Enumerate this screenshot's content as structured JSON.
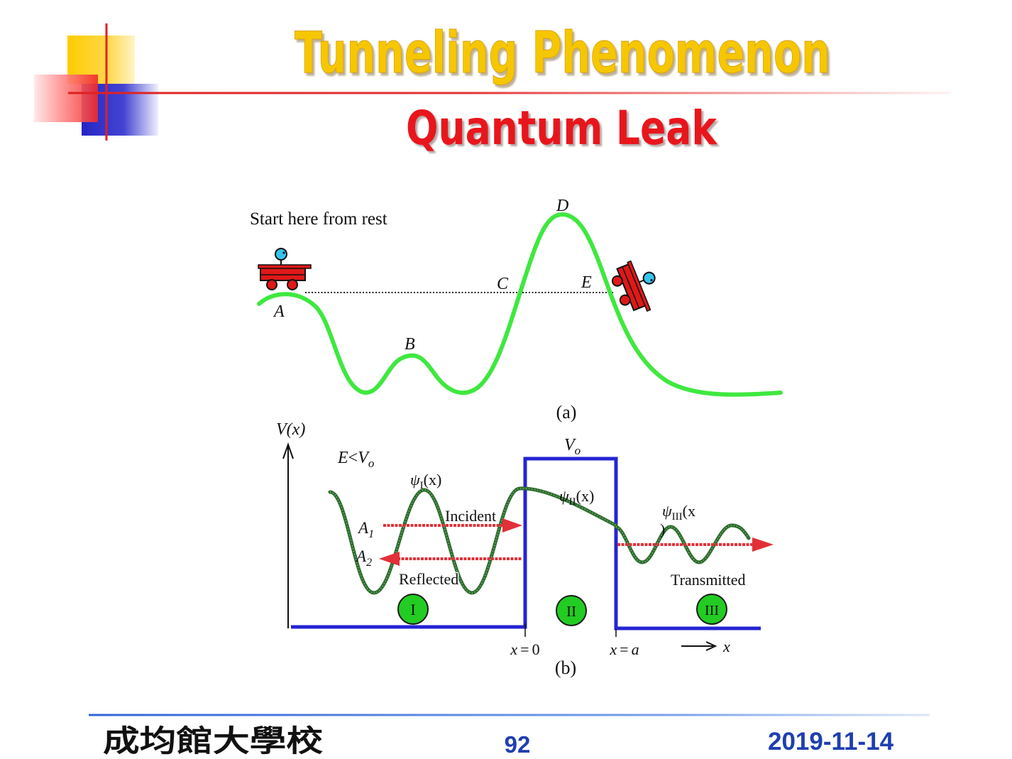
{
  "slide": {
    "title": "Tunneling Phenomenon",
    "subtitle": "Quantum Leak"
  },
  "diagram_a": {
    "start_note": "Start here from rest",
    "point_labels": {
      "A": "A",
      "B": "B",
      "C": "C",
      "D": "D",
      "E": "E"
    },
    "caption": "(a)"
  },
  "diagram_b": {
    "y_axis": {
      "symbol": "V",
      "arg": "(x)"
    },
    "condition": {
      "energy": "E",
      "relation": "<",
      "potential": "V",
      "potential_sub": "o"
    },
    "barrier_height": {
      "symbol": "V",
      "sub": "o"
    },
    "psi": [
      {
        "symbol": "ψ",
        "sub": "I",
        "arg": "(x)"
      },
      {
        "symbol": "ψ",
        "sub": "II",
        "arg": "(x)"
      },
      {
        "symbol": "ψ",
        "sub": "III",
        "arg": "(x",
        "closing": ")"
      }
    ],
    "amplitudes": [
      {
        "symbol": "A",
        "sub": "1"
      },
      {
        "symbol": "A",
        "sub": "2"
      }
    ],
    "arrows": {
      "incident": "Incident",
      "reflected": "Reflected",
      "transmitted": "Transmitted"
    },
    "regions": [
      "I",
      "II",
      "III"
    ],
    "boundaries": [
      {
        "var": "x",
        "eq": "=",
        "val": "0"
      },
      {
        "var": "x",
        "eq": "=",
        "val": "a"
      }
    ],
    "x_axis_label": "x",
    "caption": "(b)"
  },
  "footer": {
    "institution": "成均館大學校",
    "page_number": "92",
    "date": "2019-11-14"
  },
  "icons": {
    "cart": "roller-cart-icon",
    "axis_arrow": "arrow-up-icon",
    "direction_arrow": "arrow-right-icon"
  },
  "colors": {
    "title": "#F6C700",
    "subtitle": "#E8141B",
    "accent_red": "#E02020",
    "accent_yellow": "#FFD000",
    "accent_blue": "#2828C8",
    "track": "#3FE83F",
    "cart": "#E01818",
    "rider": "#35C4EE",
    "potential": "#2424D4",
    "wavefunction": "#2E6B2E",
    "flux_arrows": "#E23038",
    "region_badge": "#22CC22",
    "footer_text": "#1F3FB0"
  }
}
